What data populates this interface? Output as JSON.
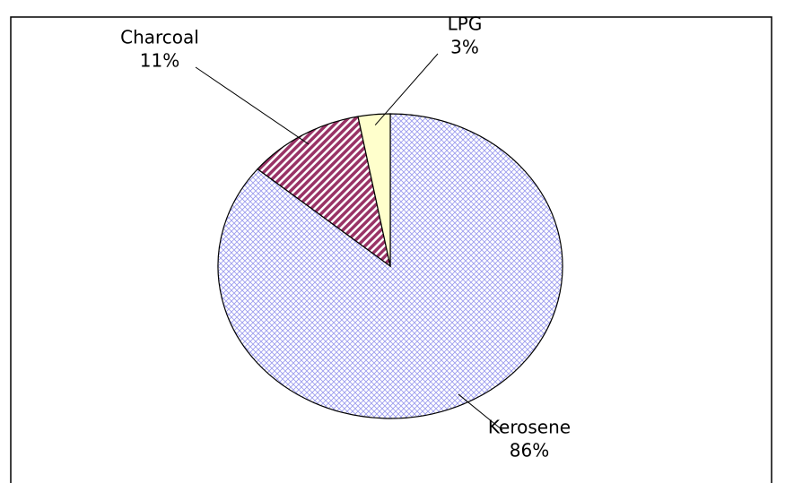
{
  "chart_data": {
    "type": "pie",
    "categories": [
      "Kerosene",
      "Charcoal",
      "LPG"
    ],
    "values": [
      86,
      11,
      3
    ],
    "value_labels": [
      "86%",
      "11%",
      "3%"
    ],
    "colors": [
      "#ccccff",
      "#993366",
      "#ffffcc"
    ]
  }
}
